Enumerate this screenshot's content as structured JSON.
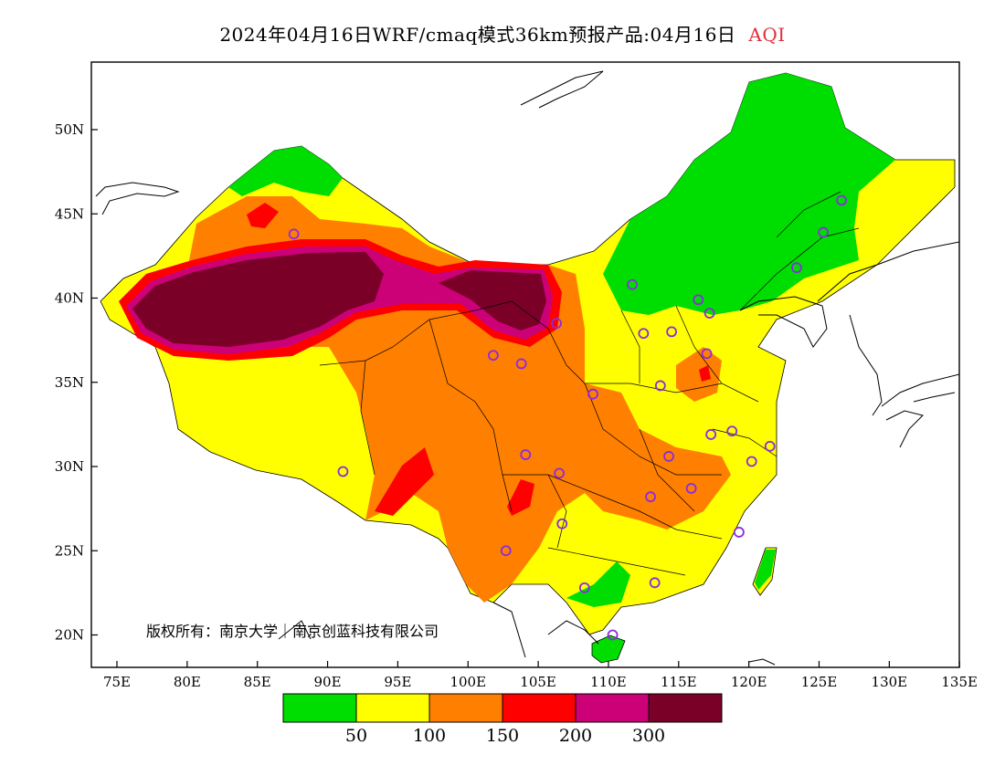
{
  "title": {
    "main": "2024年04月16日WRF/cmaq模式36km预报产品:04月16日",
    "pollutant": "AQI"
  },
  "axes": {
    "lat_labels": [
      "50N",
      "45N",
      "40N",
      "35N",
      "30N",
      "25N",
      "20N"
    ],
    "lon_labels": [
      "75E",
      "80E",
      "85E",
      "90E",
      "95E",
      "100E",
      "105E",
      "110E",
      "115E",
      "120E",
      "125E",
      "130E",
      "135E"
    ]
  },
  "copyright": "版权所有：南京大学｜南京创蓝科技有限公司",
  "legend": {
    "colors": [
      "#00dd00",
      "#ffff00",
      "#ff7f00",
      "#ff0000",
      "#cc0077",
      "#7a0028"
    ],
    "labels": [
      "50",
      "100",
      "150",
      "200",
      "300"
    ]
  },
  "station_markers": [
    [
      126.6,
      45.8
    ],
    [
      125.3,
      43.9
    ],
    [
      123.4,
      41.8
    ],
    [
      111.7,
      40.8
    ],
    [
      116.4,
      39.9
    ],
    [
      117.2,
      39.1
    ],
    [
      114.5,
      38.0
    ],
    [
      112.5,
      37.9
    ],
    [
      117.0,
      36.7
    ],
    [
      113.7,
      34.8
    ],
    [
      108.9,
      34.3
    ],
    [
      103.8,
      36.1
    ],
    [
      101.8,
      36.6
    ],
    [
      106.3,
      38.5
    ],
    [
      118.8,
      32.1
    ],
    [
      117.3,
      31.9
    ],
    [
      121.5,
      31.2
    ],
    [
      120.2,
      30.3
    ],
    [
      114.3,
      30.6
    ],
    [
      113.0,
      28.2
    ],
    [
      115.9,
      28.7
    ],
    [
      104.1,
      30.7
    ],
    [
      106.5,
      29.6
    ],
    [
      106.7,
      26.6
    ],
    [
      102.7,
      25.0
    ],
    [
      119.3,
      26.1
    ],
    [
      113.3,
      23.1
    ],
    [
      108.3,
      22.8
    ],
    [
      110.3,
      20.0
    ],
    [
      91.1,
      29.7
    ],
    [
      87.6,
      43.8
    ]
  ]
}
